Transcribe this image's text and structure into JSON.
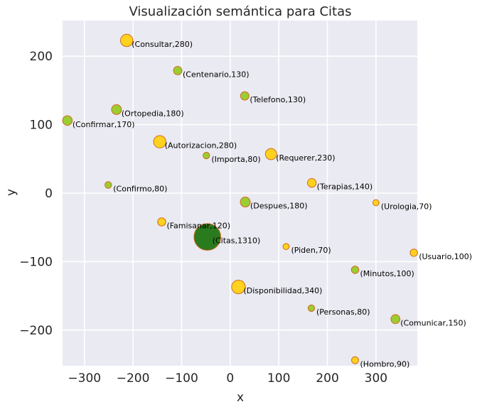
{
  "chart_data": {
    "type": "scatter",
    "title": "Visualización semántica para Citas",
    "xlabel": "x",
    "ylabel": "y",
    "xlim": [
      -345,
      385
    ],
    "ylim": [
      -252,
      252
    ],
    "xticks": [
      -300,
      -200,
      -100,
      0,
      100,
      200,
      300
    ],
    "yticks": [
      -200,
      -100,
      0,
      100,
      200
    ],
    "grid": true,
    "colors": {
      "background": "#eaeaf2",
      "grid": "#ffffff",
      "highlight": "#ffd21f",
      "normal": "#9acd32",
      "focus": "#2a7a1e",
      "edge": "#d2691e"
    },
    "points": [
      {
        "label": "(Consultar,280)",
        "x": -213,
        "y": 223,
        "size": 280,
        "kind": "highlight"
      },
      {
        "label": "(Centenario,130)",
        "x": -108,
        "y": 179,
        "size": 130,
        "kind": "normal"
      },
      {
        "label": "(Telefono,130)",
        "x": 30,
        "y": 142,
        "size": 130,
        "kind": "normal"
      },
      {
        "label": "(Ortopedia,180)",
        "x": -234,
        "y": 122,
        "size": 180,
        "kind": "normal"
      },
      {
        "label": "(Confirmar,170)",
        "x": -335,
        "y": 106,
        "size": 170,
        "kind": "normal"
      },
      {
        "label": "(Autorizacion,280)",
        "x": -145,
        "y": 75,
        "size": 280,
        "kind": "highlight"
      },
      {
        "label": "(Importa,80)",
        "x": -49,
        "y": 55,
        "size": 80,
        "kind": "normal"
      },
      {
        "label": "(Requerer,230)",
        "x": 84,
        "y": 57,
        "size": 230,
        "kind": "highlight"
      },
      {
        "label": "(Terapias,140)",
        "x": 168,
        "y": 15,
        "size": 140,
        "kind": "highlight"
      },
      {
        "label": "(Confirmo,80)",
        "x": -251,
        "y": 12,
        "size": 80,
        "kind": "normal"
      },
      {
        "label": "(Despues,180)",
        "x": 31,
        "y": -13,
        "size": 180,
        "kind": "normal"
      },
      {
        "label": "(Urologia,70)",
        "x": 300,
        "y": -14,
        "size": 70,
        "kind": "highlight"
      },
      {
        "label": "(Famisanar,120)",
        "x": -141,
        "y": -42,
        "size": 120,
        "kind": "highlight"
      },
      {
        "label": "(Citas,1310)",
        "x": -47,
        "y": -64,
        "size": 1310,
        "kind": "focus"
      },
      {
        "label": "(Piden,70)",
        "x": 115,
        "y": -78,
        "size": 70,
        "kind": "highlight"
      },
      {
        "label": "(Usuario,100)",
        "x": 378,
        "y": -87,
        "size": 100,
        "kind": "highlight"
      },
      {
        "label": "(Minutos,100)",
        "x": 257,
        "y": -112,
        "size": 100,
        "kind": "normal"
      },
      {
        "label": "(Disponibilidad,340)",
        "x": 17,
        "y": -137,
        "size": 340,
        "kind": "highlight"
      },
      {
        "label": "(Personas,80)",
        "x": 167,
        "y": -168,
        "size": 80,
        "kind": "normal"
      },
      {
        "label": "(Comunicar,150)",
        "x": 340,
        "y": -184,
        "size": 150,
        "kind": "normal"
      },
      {
        "label": "(Hombro,90)",
        "x": 257,
        "y": -244,
        "size": 90,
        "kind": "highlight"
      }
    ]
  }
}
